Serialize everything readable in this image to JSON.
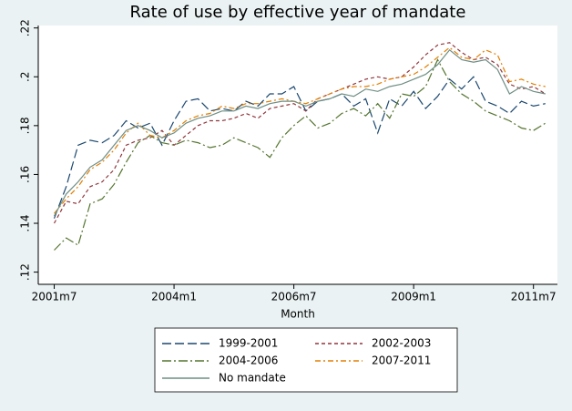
{
  "chart_data": {
    "type": "line",
    "title": "Rate of use by effective year of mandate",
    "x_label": "Month",
    "x": [
      498,
      501,
      504,
      507,
      510,
      513,
      516,
      519,
      522,
      525,
      528,
      531,
      534,
      537,
      540,
      543,
      546,
      549,
      552,
      555,
      558,
      561,
      564,
      567,
      570,
      573,
      576,
      579,
      582,
      585,
      588,
      591,
      594,
      597,
      600,
      603,
      606,
      609,
      612,
      615,
      618,
      621
    ],
    "xlim": [
      494,
      624
    ],
    "xticks": [
      {
        "value": 498,
        "label": "2001m7"
      },
      {
        "value": 528,
        "label": "2004m1"
      },
      {
        "value": 558,
        "label": "2006m7"
      },
      {
        "value": 588,
        "label": "2009m1"
      },
      {
        "value": 618,
        "label": "2011m7"
      }
    ],
    "ylim": [
      0.115,
      0.221
    ],
    "yticks": [
      {
        "value": 0.12,
        "label": ".12"
      },
      {
        "value": 0.14,
        "label": ".14"
      },
      {
        "value": 0.16,
        "label": ".16"
      },
      {
        "value": 0.18,
        "label": ".18"
      },
      {
        "value": 0.2,
        "label": ".2"
      },
      {
        "value": 0.22,
        "label": ".22"
      }
    ],
    "series": [
      {
        "name": "1999-2001",
        "color": "#1a476f",
        "values": [
          0.142,
          0.155,
          0.172,
          0.174,
          0.173,
          0.176,
          0.182,
          0.179,
          0.181,
          0.172,
          0.182,
          0.19,
          0.191,
          0.186,
          0.187,
          0.186,
          0.19,
          0.188,
          0.193,
          0.193,
          0.196,
          0.186,
          0.19,
          0.191,
          0.193,
          0.188,
          0.191,
          0.177,
          0.191,
          0.188,
          0.194,
          0.187,
          0.192,
          0.199,
          0.195,
          0.2,
          0.19,
          0.188,
          0.185,
          0.19,
          0.188,
          0.189
        ]
      },
      {
        "name": "2002-2003",
        "color": "#90353b",
        "values": [
          0.14,
          0.149,
          0.148,
          0.155,
          0.157,
          0.162,
          0.172,
          0.174,
          0.175,
          0.178,
          0.172,
          0.176,
          0.18,
          0.182,
          0.182,
          0.183,
          0.185,
          0.183,
          0.187,
          0.188,
          0.189,
          0.186,
          0.191,
          0.193,
          0.195,
          0.197,
          0.199,
          0.2,
          0.199,
          0.2,
          0.204,
          0.209,
          0.213,
          0.214,
          0.21,
          0.207,
          0.208,
          0.205,
          0.197,
          0.195,
          0.196,
          0.193
        ]
      },
      {
        "name": "2004-2006",
        "color": "#55752f",
        "values": [
          0.129,
          0.134,
          0.131,
          0.148,
          0.15,
          0.156,
          0.165,
          0.173,
          0.176,
          0.173,
          0.172,
          0.174,
          0.173,
          0.171,
          0.172,
          0.175,
          0.173,
          0.171,
          0.167,
          0.175,
          0.18,
          0.184,
          0.179,
          0.181,
          0.185,
          0.187,
          0.184,
          0.189,
          0.183,
          0.193,
          0.192,
          0.196,
          0.207,
          0.198,
          0.193,
          0.19,
          0.186,
          0.184,
          0.182,
          0.179,
          0.178,
          0.181
        ]
      },
      {
        "name": "2007-2011",
        "color": "#e37e00",
        "values": [
          0.144,
          0.15,
          0.155,
          0.162,
          0.165,
          0.17,
          0.177,
          0.181,
          0.176,
          0.175,
          0.178,
          0.182,
          0.184,
          0.185,
          0.188,
          0.187,
          0.189,
          0.189,
          0.19,
          0.191,
          0.19,
          0.189,
          0.191,
          0.193,
          0.195,
          0.196,
          0.196,
          0.197,
          0.199,
          0.2,
          0.201,
          0.204,
          0.208,
          0.212,
          0.208,
          0.207,
          0.211,
          0.209,
          0.198,
          0.199,
          0.197,
          0.196
        ]
      },
      {
        "name": "No mandate",
        "color": "#6e8e84",
        "values": [
          0.143,
          0.152,
          0.157,
          0.163,
          0.166,
          0.172,
          0.178,
          0.18,
          0.178,
          0.175,
          0.177,
          0.181,
          0.183,
          0.184,
          0.186,
          0.186,
          0.188,
          0.187,
          0.189,
          0.19,
          0.19,
          0.188,
          0.19,
          0.191,
          0.193,
          0.192,
          0.195,
          0.194,
          0.196,
          0.197,
          0.199,
          0.201,
          0.205,
          0.211,
          0.207,
          0.206,
          0.207,
          0.203,
          0.193,
          0.196,
          0.194,
          0.193
        ]
      }
    ]
  }
}
